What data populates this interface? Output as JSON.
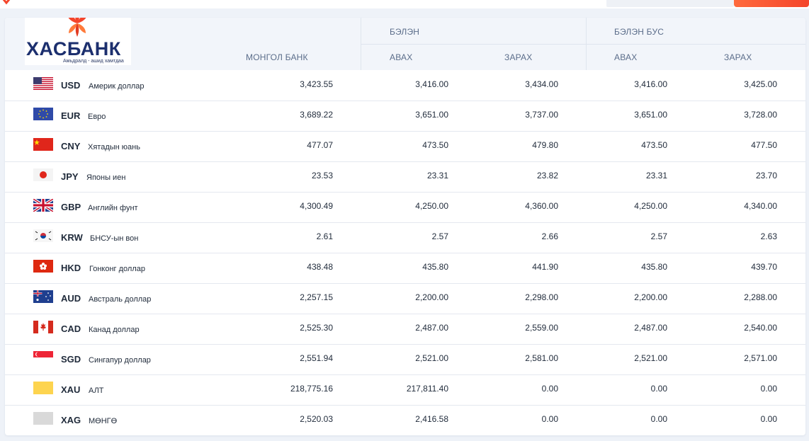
{
  "brand": {
    "name": "ХАСБАНК",
    "slogan": "Амьдралд - ашид хамтдаа"
  },
  "header": {
    "group_cash": "БЭЛЭН",
    "group_noncash": "БЭЛЭН БУС",
    "col_mongolbank": "МОНГОЛ БАНК",
    "col_cash_buy": "АВАХ",
    "col_cash_sell": "ЗАРАХ",
    "col_noncash_buy": "АВАХ",
    "col_noncash_sell": "ЗАРАХ"
  },
  "rates": [
    {
      "code": "USD",
      "name": "Америк доллар",
      "flag": "us-flag",
      "mongolbank": "3,423.55",
      "cash_buy": "3,416.00",
      "cash_sell": "3,434.00",
      "noncash_buy": "3,416.00",
      "noncash_sell": "3,425.00"
    },
    {
      "code": "EUR",
      "name": "Евро",
      "flag": "eu-flag",
      "mongolbank": "3,689.22",
      "cash_buy": "3,651.00",
      "cash_sell": "3,737.00",
      "noncash_buy": "3,651.00",
      "noncash_sell": "3,728.00"
    },
    {
      "code": "CNY",
      "name": "Хятадын юань",
      "flag": "cn-flag",
      "mongolbank": "477.07",
      "cash_buy": "473.50",
      "cash_sell": "479.80",
      "noncash_buy": "473.50",
      "noncash_sell": "477.50"
    },
    {
      "code": "JPY",
      "name": "Японы иен",
      "flag": "jp-flag",
      "mongolbank": "23.53",
      "cash_buy": "23.31",
      "cash_sell": "23.82",
      "noncash_buy": "23.31",
      "noncash_sell": "23.70"
    },
    {
      "code": "GBP",
      "name": "Английн фунт",
      "flag": "gb-flag",
      "mongolbank": "4,300.49",
      "cash_buy": "4,250.00",
      "cash_sell": "4,360.00",
      "noncash_buy": "4,250.00",
      "noncash_sell": "4,340.00"
    },
    {
      "code": "KRW",
      "name": "БНСУ-ын вон",
      "flag": "kr-flag",
      "mongolbank": "2.61",
      "cash_buy": "2.57",
      "cash_sell": "2.66",
      "noncash_buy": "2.57",
      "noncash_sell": "2.63"
    },
    {
      "code": "HKD",
      "name": "Гонконг доллар",
      "flag": "hk-flag",
      "mongolbank": "438.48",
      "cash_buy": "435.80",
      "cash_sell": "441.90",
      "noncash_buy": "435.80",
      "noncash_sell": "439.70"
    },
    {
      "code": "AUD",
      "name": "Австраль доллар",
      "flag": "au-flag",
      "mongolbank": "2,257.15",
      "cash_buy": "2,200.00",
      "cash_sell": "2,298.00",
      "noncash_buy": "2,200.00",
      "noncash_sell": "2,288.00"
    },
    {
      "code": "CAD",
      "name": "Канад доллар",
      "flag": "ca-flag",
      "mongolbank": "2,525.30",
      "cash_buy": "2,487.00",
      "cash_sell": "2,559.00",
      "noncash_buy": "2,487.00",
      "noncash_sell": "2,540.00"
    },
    {
      "code": "SGD",
      "name": "Сингапур доллар",
      "flag": "sg-flag",
      "mongolbank": "2,551.94",
      "cash_buy": "2,521.00",
      "cash_sell": "2,581.00",
      "noncash_buy": "2,521.00",
      "noncash_sell": "2,571.00"
    },
    {
      "code": "XAU",
      "name": "АЛТ",
      "flag": "gold-swatch",
      "mongolbank": "218,775.16",
      "cash_buy": "217,811.40",
      "cash_sell": "0.00",
      "noncash_buy": "0.00",
      "noncash_sell": "0.00"
    },
    {
      "code": "XAG",
      "name": "МӨНГӨ",
      "flag": "silver-swatch",
      "mongolbank": "2,520.03",
      "cash_buy": "2,416.58",
      "cash_sell": "0.00",
      "noncash_buy": "0.00",
      "noncash_sell": "0.00"
    }
  ],
  "colors": {
    "brand_navy": "#1c2f6e",
    "brand_orange": "#f4452b",
    "header_bg": "#f2f5fa"
  }
}
